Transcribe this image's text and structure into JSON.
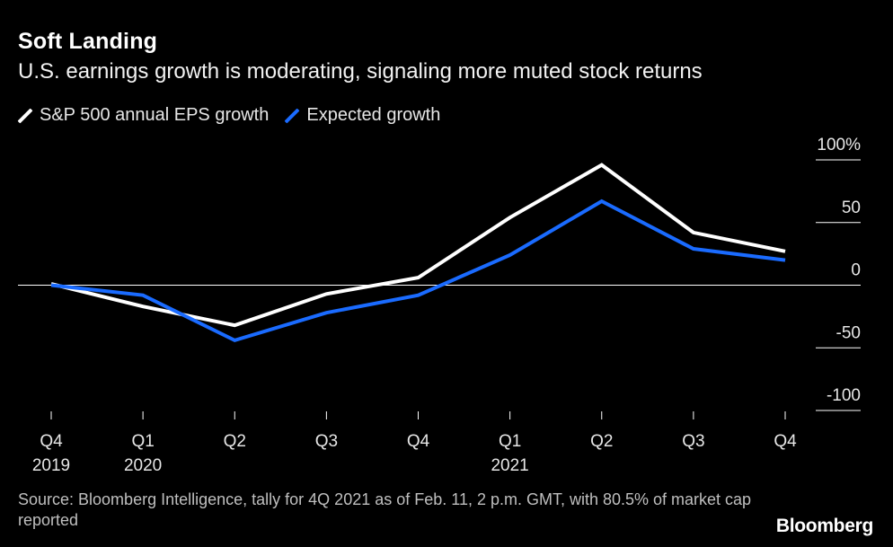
{
  "title": "Soft Landing",
  "subtitle": "U.S. earnings growth is moderating, signaling more muted stock returns",
  "legend": [
    {
      "label": "S&P 500 annual EPS growth",
      "color": "#ffffff"
    },
    {
      "label": "Expected growth",
      "color": "#1a6bff"
    }
  ],
  "source": "Source: Bloomberg Intelligence, tally for 4Q 2021 as of Feb. 11, 2 p.m. GMT, with 80.5% of market cap reported",
  "logo": "Bloomberg",
  "chart_data": {
    "type": "line",
    "categories": [
      "Q4 2019",
      "Q1 2020",
      "Q2 2020",
      "Q3 2020",
      "Q4 2020",
      "Q1 2021",
      "Q2 2021",
      "Q3 2021",
      "Q4 2021"
    ],
    "x_tick_labels": [
      {
        "top": "Q4",
        "bottom": "2019"
      },
      {
        "top": "Q1",
        "bottom": "2020"
      },
      {
        "top": "Q2",
        "bottom": ""
      },
      {
        "top": "Q3",
        "bottom": ""
      },
      {
        "top": "Q4",
        "bottom": ""
      },
      {
        "top": "Q1",
        "bottom": "2021"
      },
      {
        "top": "Q2",
        "bottom": ""
      },
      {
        "top": "Q3",
        "bottom": ""
      },
      {
        "top": "Q4",
        "bottom": ""
      }
    ],
    "series": [
      {
        "name": "S&P 500 annual EPS growth",
        "color": "#ffffff",
        "values": [
          1,
          -17,
          -32,
          -7,
          6,
          54,
          96,
          42,
          27
        ]
      },
      {
        "name": "Expected growth",
        "color": "#1a6bff",
        "values": [
          0,
          -8,
          -44,
          -22,
          -8,
          24,
          67,
          29,
          20
        ]
      }
    ],
    "y_ticks": [
      100,
      50,
      0,
      -50,
      -100
    ],
    "y_tick_labels": [
      "100%",
      "50",
      "0",
      "-50",
      "-100"
    ],
    "ylim": [
      -100,
      100
    ],
    "zero_line": true,
    "grid": false,
    "legend_position": "top-left"
  }
}
